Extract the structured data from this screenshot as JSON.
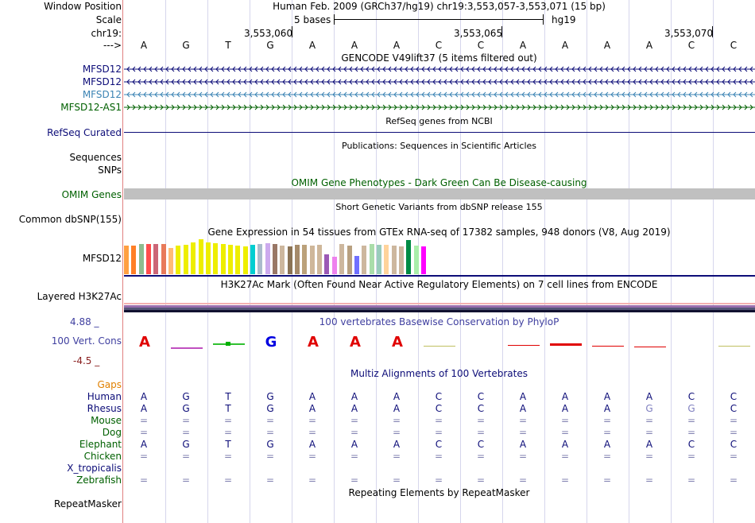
{
  "position_header": {
    "window_position_label": "Window Position",
    "window_position_value": "Human Feb. 2009 (GRCh37/hg19)   chr19:3,553,057-3,553,071 (15 bp)",
    "scale_label": "Scale",
    "scale_value": "5 bases",
    "scale_assembly": "hg19",
    "chrom_label": "chr19:",
    "coord_ticks": [
      "3,553,060",
      "3,553,065",
      "3,553,070"
    ],
    "strand_label": "--->",
    "bases": [
      "A",
      "G",
      "T",
      "G",
      "A",
      "A",
      "A",
      "C",
      "C",
      "A",
      "A",
      "A",
      "A",
      "C",
      "C"
    ]
  },
  "gencode": {
    "title": "GENCODE V49lift37 (5 items filtered out)",
    "items": [
      {
        "name": "MFSD12",
        "strand": "-",
        "color": "#0c0c78"
      },
      {
        "name": "MFSD12",
        "strand": "-",
        "color": "#0c0c78"
      },
      {
        "name": "MFSD12",
        "strand": "-",
        "color": "#3c84b4"
      },
      {
        "name": "MFSD12-AS1",
        "strand": "+",
        "color": "#006000"
      }
    ]
  },
  "refseq": {
    "title": "RefSeq genes from NCBI",
    "label": "RefSeq Curated"
  },
  "publications": {
    "title": "Publications: Sequences in Scientific Articles",
    "label_line1": "Sequences",
    "label_line2": "SNPs"
  },
  "omim": {
    "title": "OMIM Gene Phenotypes - Dark Green Can Be Disease-causing",
    "label": "OMIM Genes"
  },
  "dbsnp": {
    "title": "Short Genetic Variants from dbSNP release 155",
    "label": "Common dbSNP(155)"
  },
  "gtex": {
    "title": "Gene Expression in 54 tissues from GTEx RNA-seq of 17382 samples, 948 donors (V8, Aug 2019)",
    "label": "MFSD12",
    "bars": [
      {
        "c": "#ff9f41",
        "v": 0.82
      },
      {
        "c": "#ff7f27",
        "v": 0.82
      },
      {
        "c": "#8fbc8f",
        "v": 0.86
      },
      {
        "c": "#ff4d4d",
        "v": 0.86
      },
      {
        "c": "#cc6677",
        "v": 0.86
      },
      {
        "c": "#e87a5a",
        "v": 0.86
      },
      {
        "c": "#ffbb77",
        "v": 0.76
      },
      {
        "c": "#eeee00",
        "v": 0.82
      },
      {
        "c": "#eeee00",
        "v": 0.84
      },
      {
        "c": "#eeee00",
        "v": 0.92
      },
      {
        "c": "#eeee00",
        "v": 1.0
      },
      {
        "c": "#eeee00",
        "v": 0.9
      },
      {
        "c": "#eeee00",
        "v": 0.88
      },
      {
        "c": "#eeee00",
        "v": 0.86
      },
      {
        "c": "#eeee00",
        "v": 0.84
      },
      {
        "c": "#eeee00",
        "v": 0.82
      },
      {
        "c": "#eeee00",
        "v": 0.8
      },
      {
        "c": "#00ced1",
        "v": 0.84
      },
      {
        "c": "#aabbcc",
        "v": 0.86
      },
      {
        "c": "#ccaaee",
        "v": 0.88
      },
      {
        "c": "#997766",
        "v": 0.86
      },
      {
        "c": "#cdb79e",
        "v": 0.82
      },
      {
        "c": "#8b7355",
        "v": 0.8
      },
      {
        "c": "#a58a6a",
        "v": 0.84
      },
      {
        "c": "#bba17a",
        "v": 0.84
      },
      {
        "c": "#cfb79a",
        "v": 0.82
      },
      {
        "c": "#cfb79a",
        "v": 0.84
      },
      {
        "c": "#9b59b6",
        "v": 0.56
      },
      {
        "c": "#ee82ee",
        "v": 0.5
      },
      {
        "c": "#cdb79e",
        "v": 0.86
      },
      {
        "c": "#b8a080",
        "v": 0.82
      },
      {
        "c": "#7070ff",
        "v": 0.52
      },
      {
        "c": "#cdb79e",
        "v": 0.82
      },
      {
        "c": "#aaddaa",
        "v": 0.86
      },
      {
        "c": "#99ccbb",
        "v": 0.84
      },
      {
        "c": "#ffd39b",
        "v": 0.84
      },
      {
        "c": "#cdb79e",
        "v": 0.82
      },
      {
        "c": "#cdb79e",
        "v": 0.8
      },
      {
        "c": "#008b45",
        "v": 0.98
      },
      {
        "c": "#aaeeaa",
        "v": 0.82
      },
      {
        "c": "#ff00ff",
        "v": 0.8
      }
    ]
  },
  "h3k27ac": {
    "title": "H3K27Ac Mark (Often Found Near Active Regulatory Elements) on 7 cell lines from ENCODE",
    "label": "Layered H3K27Ac"
  },
  "phylop": {
    "title": "100 vertebrates Basewise Conservation by PhyloP",
    "label": "100 Vert. Cons",
    "y_max": "4.88 _",
    "y_min": "-4.5 _"
  },
  "multiz": {
    "title": "Multiz Alignments of 100 Vertebrates",
    "gaps_label": "Gaps",
    "species": [
      {
        "name": "Human",
        "color": "#0c0c78",
        "row": [
          "A",
          "G",
          "T",
          "G",
          "A",
          "A",
          "A",
          "C",
          "C",
          "A",
          "A",
          "A",
          "A",
          "C",
          "C"
        ]
      },
      {
        "name": "Rhesus",
        "color": "#0c0c78",
        "row": [
          "A",
          "G",
          "T",
          "G",
          "A",
          "A",
          "A",
          "C",
          "C",
          "A",
          "A",
          "A",
          "G",
          "G",
          "C"
        ]
      },
      {
        "name": "Mouse",
        "color": "#006000",
        "row": [
          "=",
          "=",
          "=",
          "=",
          "=",
          "=",
          "=",
          "=",
          "=",
          "=",
          "=",
          "=",
          "=",
          "=",
          "="
        ]
      },
      {
        "name": "Dog",
        "color": "#006000",
        "row": [
          "=",
          "=",
          "=",
          "=",
          "=",
          "=",
          "=",
          "=",
          "=",
          "=",
          "=",
          "=",
          "=",
          "=",
          "="
        ]
      },
      {
        "name": "Elephant",
        "color": "#006000",
        "row": [
          "A",
          "G",
          "T",
          "G",
          "A",
          "A",
          "A",
          "C",
          "C",
          "A",
          "A",
          "A",
          "A",
          "C",
          "C"
        ]
      },
      {
        "name": "Chicken",
        "color": "#006000",
        "row": [
          "=",
          "=",
          "=",
          "=",
          "=",
          "=",
          "=",
          "=",
          "=",
          "=",
          "=",
          "=",
          "=",
          "=",
          "="
        ]
      },
      {
        "name": "X_tropicalis",
        "color": "#0c0c78",
        "row": [
          "",
          "",
          "",
          "",
          "",
          "",
          "",
          "",
          "",
          "",
          "",
          "",
          "",
          "",
          ""
        ]
      },
      {
        "name": "Zebrafish",
        "color": "#006000",
        "row": [
          "=",
          "=",
          "=",
          "=",
          "=",
          "=",
          "=",
          "=",
          "=",
          "=",
          "=",
          "=",
          "=",
          "=",
          "="
        ]
      }
    ]
  },
  "repeatmasker": {
    "title": "Repeating Elements by RepeatMasker",
    "label": "RepeatMasker"
  },
  "colors": {
    "navy": "#0c0c78",
    "green": "#006000",
    "omim_gray": "#c0c0c0",
    "phylop_red": "#e00000",
    "phylop_blue": "#0000e0"
  }
}
